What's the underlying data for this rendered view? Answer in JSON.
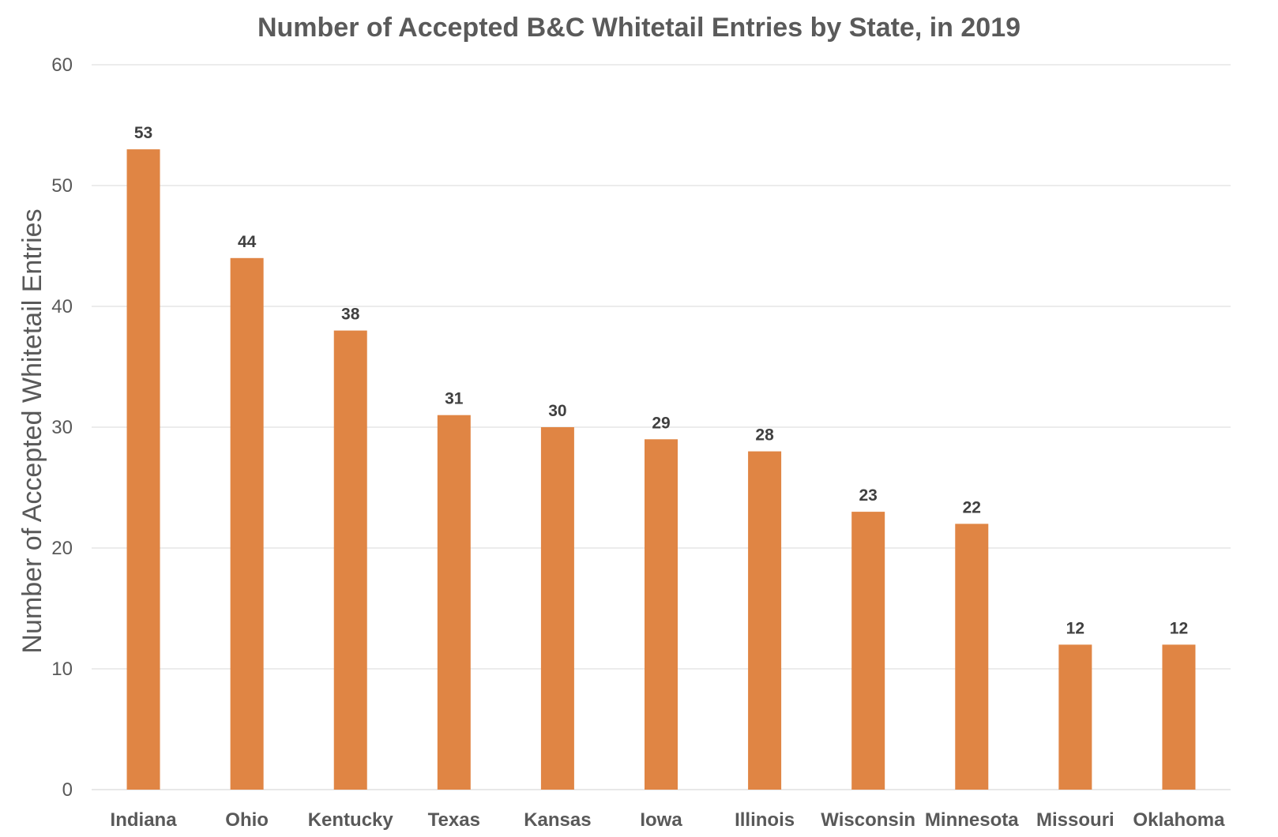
{
  "chart_data": {
    "type": "bar",
    "title": "Number of Accepted B&C Whitetail Entries by State, in 2019",
    "xlabel": "",
    "ylabel": "Number of Accepted Whitetail Entries",
    "categories": [
      "Indiana",
      "Ohio",
      "Kentucky",
      "Texas",
      "Kansas",
      "Iowa",
      "Illinois",
      "Wisconsin",
      "Minnesota",
      "Missouri",
      "Oklahoma"
    ],
    "values": [
      53,
      44,
      38,
      31,
      30,
      29,
      28,
      23,
      22,
      12,
      12
    ],
    "ylim": [
      0,
      60
    ],
    "yticks": [
      0,
      10,
      20,
      30,
      40,
      50,
      60
    ],
    "grid": true,
    "legend": "none",
    "data_labels": true,
    "bar_color": "#e08544"
  }
}
